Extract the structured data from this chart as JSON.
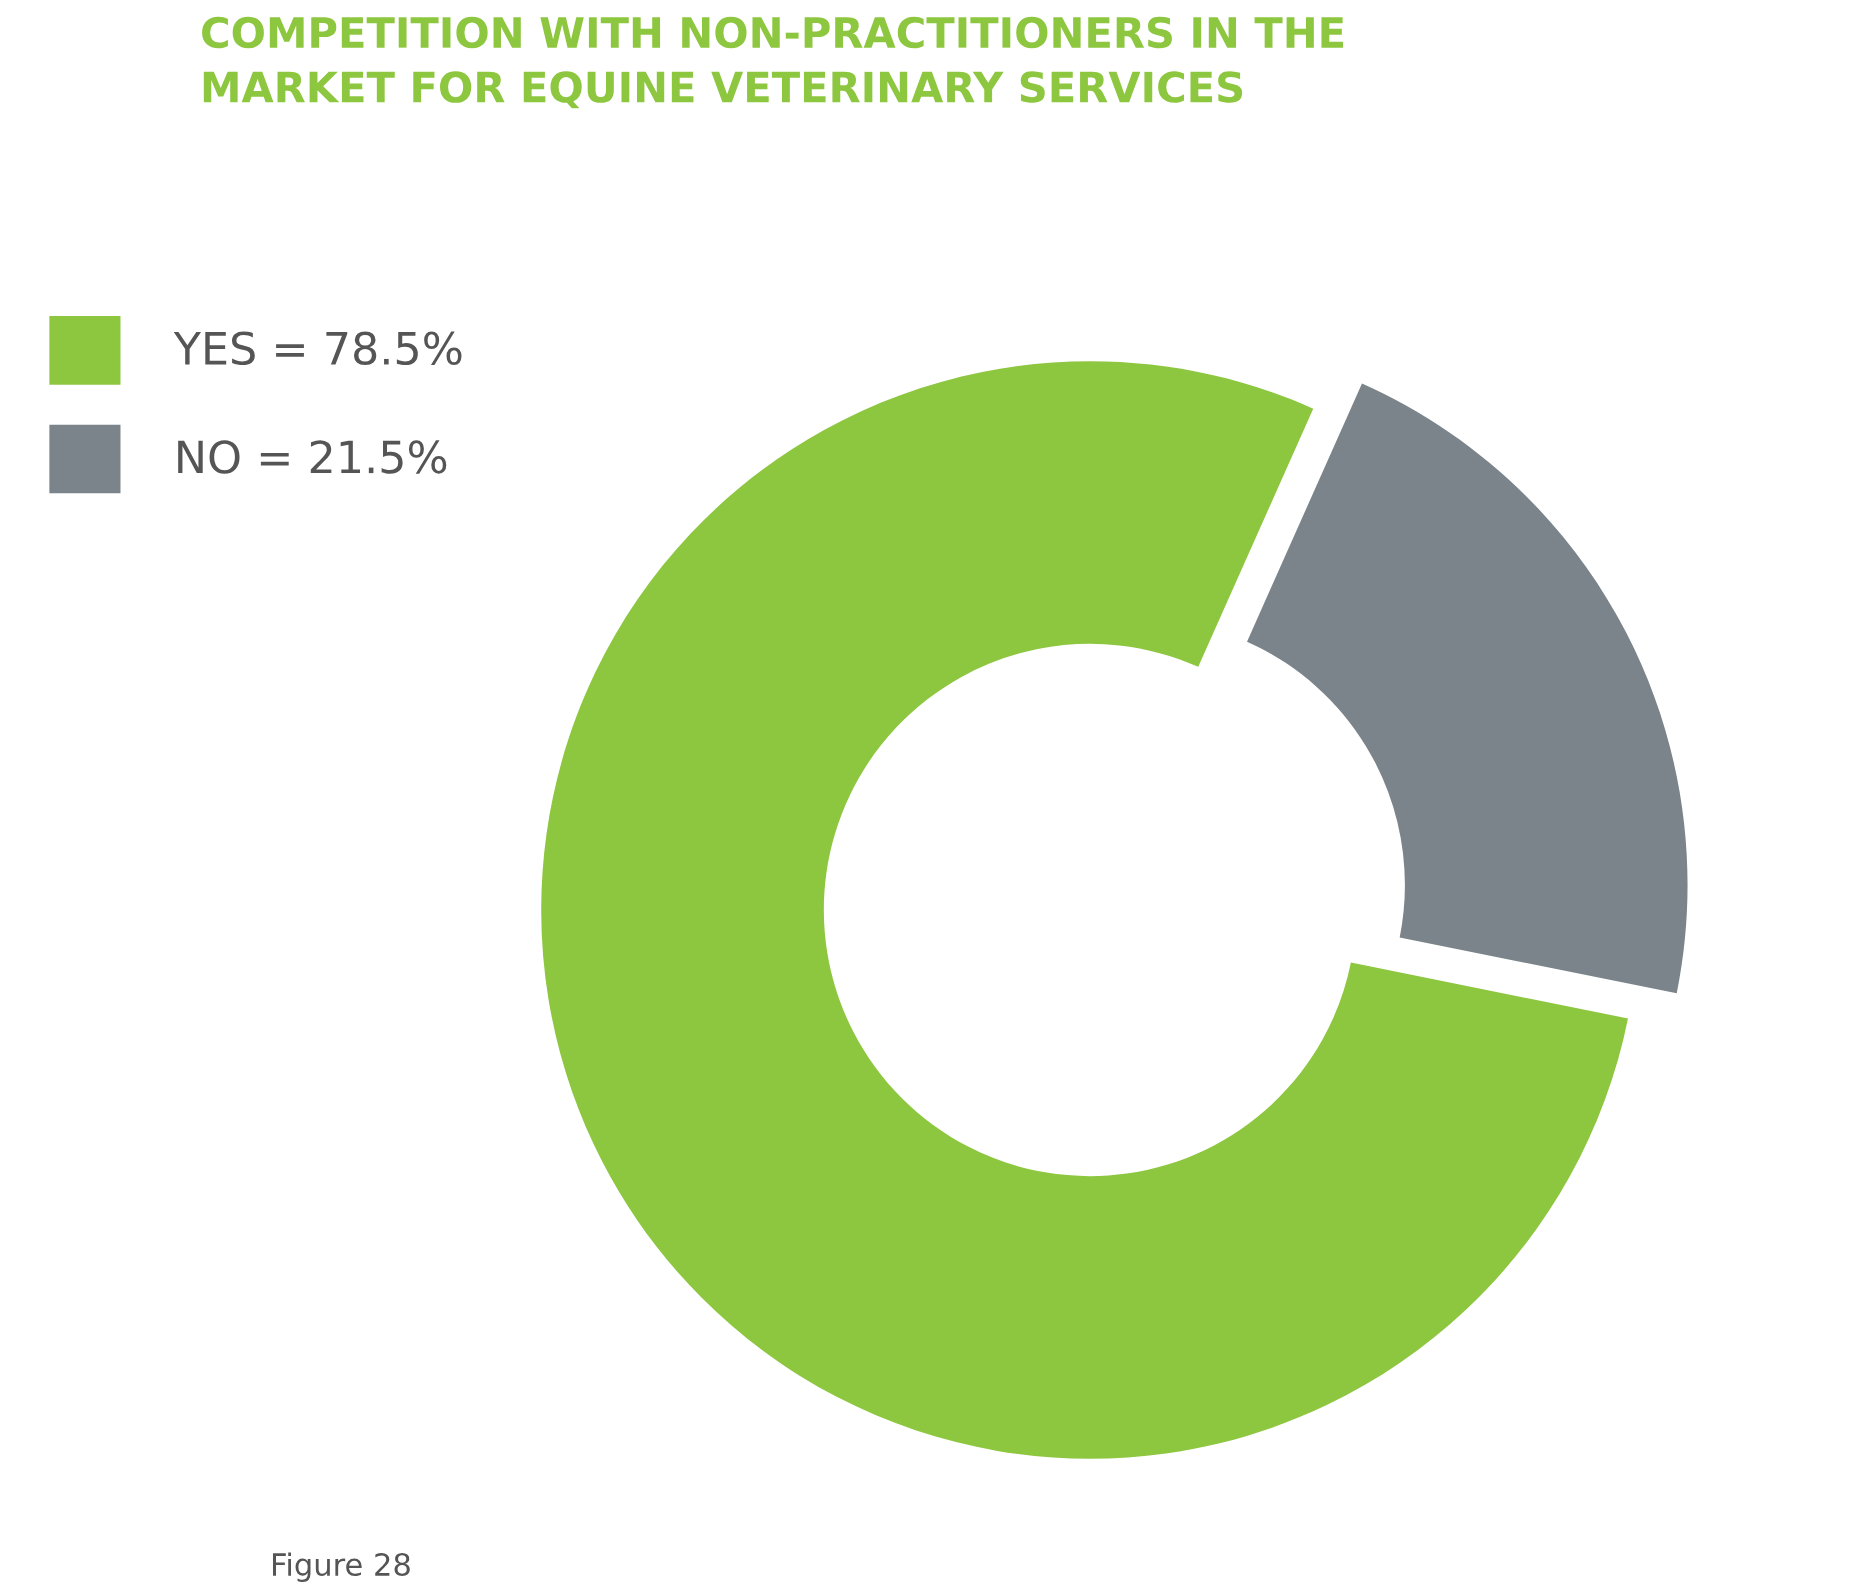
{
  "chart_data": {
    "type": "donut",
    "title": "COMPETITION WITH NON-PRACTITIONERS IN THE\nMARKET FOR EQUINE VETERINARY SERVICES",
    "categories": [
      "YES = 78.5%",
      "NO = 21.5%"
    ],
    "values": [
      78.5,
      21.5
    ],
    "colors": [
      "#8dc63f",
      "#7a848a"
    ],
    "legend": "top left",
    "annotations": [
      "Figure 28"
    ]
  }
}
